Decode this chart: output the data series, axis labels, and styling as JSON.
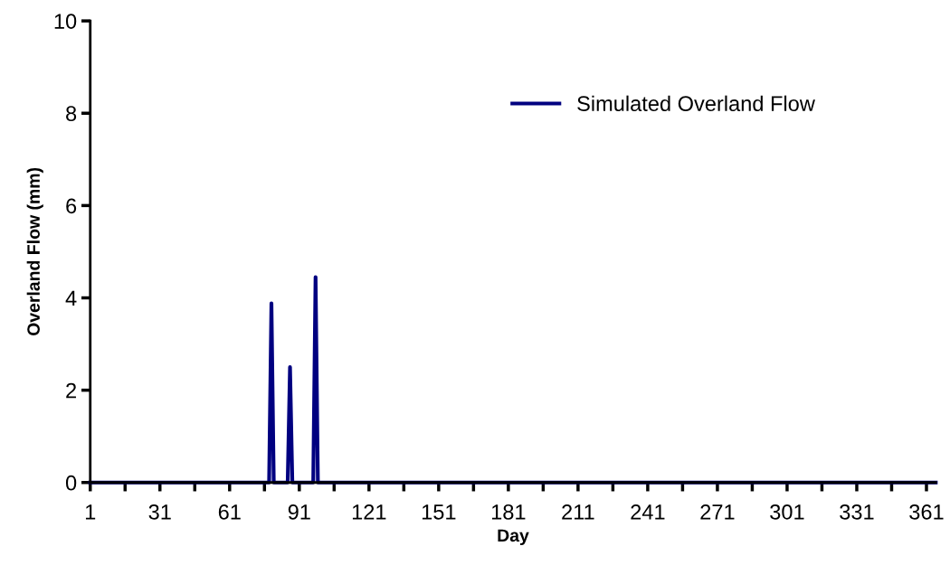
{
  "chart_data": {
    "type": "line",
    "xlabel": "Day",
    "ylabel": "Overland Flow (mm)",
    "x": [
      1,
      78,
      79,
      80,
      86,
      87,
      88,
      97,
      98,
      99,
      365
    ],
    "series": [
      {
        "name": "Simulated Overland Flow",
        "color": "#000080",
        "values": [
          0,
          0,
          3.88,
          0,
          0,
          2.5,
          0,
          0,
          4.45,
          0,
          0
        ]
      }
    ],
    "xlim": [
      1,
      365
    ],
    "xticks": [
      1,
      {
        "value": 16,
        "label": null
      },
      31,
      {
        "value": 46,
        "label": null
      },
      61,
      {
        "value": 76,
        "label": null
      },
      91,
      {
        "value": 106,
        "label": null
      },
      121,
      {
        "value": 136,
        "label": null
      },
      151,
      {
        "value": 166,
        "label": null
      },
      181,
      {
        "value": 196,
        "label": null
      },
      211,
      {
        "value": 226,
        "label": null
      },
      241,
      {
        "value": 256,
        "label": null
      },
      271,
      {
        "value": 286,
        "label": null
      },
      301,
      {
        "value": 316,
        "label": null
      },
      331,
      {
        "value": 346,
        "label": null
      },
      361
    ],
    "ylim": [
      0,
      10
    ],
    "yticks": [
      0,
      2,
      4,
      6,
      8,
      10
    ],
    "grid": false,
    "legend": "top right",
    "marker": "none",
    "line_style": "solid"
  }
}
